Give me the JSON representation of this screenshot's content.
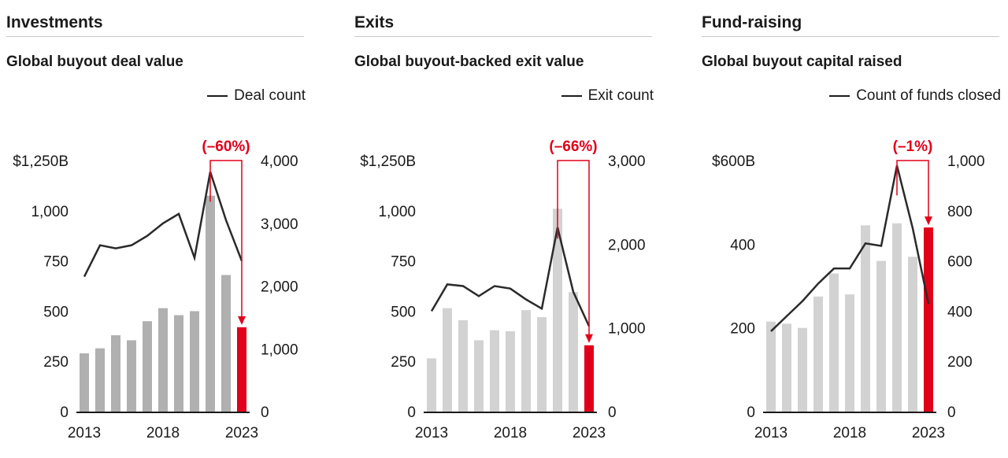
{
  "chart_data": [
    {
      "type": "bar",
      "section": "Investments",
      "title": "Global buyout deal value",
      "legend": "Deal count",
      "categories": [
        "2013",
        "2014",
        "2015",
        "2016",
        "2017",
        "2018",
        "2019",
        "2020",
        "2021",
        "2022",
        "2023"
      ],
      "x_tick_labels": [
        "2013",
        "2018",
        "2023"
      ],
      "bar_values": [
        290,
        315,
        380,
        355,
        450,
        515,
        480,
        500,
        1075,
        680,
        420
      ],
      "line_values": [
        2150,
        2650,
        2600,
        2650,
        2800,
        3000,
        3150,
        2450,
        3820,
        3050,
        2400
      ],
      "ylim_left": [
        0,
        1250
      ],
      "ylim_right": [
        0,
        4000
      ],
      "left_tick_labels": [
        "0",
        "250",
        "500",
        "750",
        "1,000",
        "$1,250B"
      ],
      "right_tick_labels": [
        "0",
        "1,000",
        "2,000",
        "3,000",
        "4,000"
      ],
      "annotation": "(–60%)",
      "bar_color": "#b0b0b0",
      "highlight_color": "#e1001a"
    },
    {
      "type": "bar",
      "section": "Exits",
      "title": "Global buyout-backed exit value",
      "legend": "Exit count",
      "categories": [
        "2013",
        "2014",
        "2015",
        "2016",
        "2017",
        "2018",
        "2019",
        "2020",
        "2021",
        "2022",
        "2023"
      ],
      "x_tick_labels": [
        "2013",
        "2018",
        "2023"
      ],
      "bar_values": [
        265,
        515,
        455,
        355,
        405,
        400,
        505,
        470,
        1010,
        595,
        330
      ],
      "line_values": [
        1200,
        1520,
        1500,
        1380,
        1500,
        1470,
        1340,
        1230,
        2200,
        1430,
        1020
      ],
      "ylim_left": [
        0,
        1250
      ],
      "ylim_right": [
        0,
        3000
      ],
      "left_tick_labels": [
        "0",
        "250",
        "500",
        "750",
        "1,000",
        "$1,250B"
      ],
      "right_tick_labels": [
        "0",
        "1,000",
        "2,000",
        "3,000"
      ],
      "annotation": "(–66%)",
      "bar_color": "#d2d2d2",
      "highlight_color": "#e1001a"
    },
    {
      "type": "bar",
      "section": "Fund-raising",
      "title": "Global buyout capital raised",
      "legend": "Count of funds closed",
      "categories": [
        "2013",
        "2014",
        "2015",
        "2016",
        "2017",
        "2018",
        "2019",
        "2020",
        "2021",
        "2022",
        "2023"
      ],
      "x_tick_labels": [
        "2013",
        "2018",
        "2023"
      ],
      "bar_values": [
        215,
        210,
        200,
        275,
        330,
        280,
        445,
        360,
        450,
        370,
        440
      ],
      "line_values": [
        320,
        380,
        440,
        510,
        570,
        570,
        670,
        660,
        980,
        730,
        430
      ],
      "ylim_left": [
        0,
        600
      ],
      "ylim_right": [
        0,
        1000
      ],
      "left_tick_labels": [
        "0",
        "200",
        "400",
        "$600B"
      ],
      "right_tick_labels": [
        "0",
        "200",
        "400",
        "600",
        "800",
        "1,000"
      ],
      "annotation": "(–1%)",
      "bar_color": "#d2d2d2",
      "highlight_color": "#e1001a"
    }
  ]
}
